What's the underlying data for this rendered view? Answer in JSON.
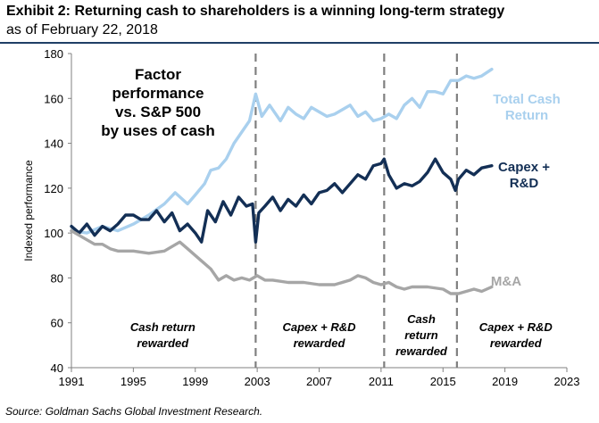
{
  "header": {
    "title": "Exhibit 2: Returning cash to shareholders is a winning long-term strategy",
    "subtitle": "as of February 22, 2018"
  },
  "footer": {
    "source": "Source: Goldman Sachs Global Investment Research."
  },
  "chart_data": {
    "type": "line",
    "ylabel": "Indexed performance",
    "xlabel": "",
    "xlim": [
      1991,
      2023
    ],
    "ylim": [
      40,
      180
    ],
    "xticks": [
      "1991",
      "1995",
      "1999",
      "2003",
      "2007",
      "2011",
      "2015",
      "2019",
      "2023"
    ],
    "yticks": [
      "40",
      "60",
      "80",
      "100",
      "120",
      "140",
      "160",
      "180"
    ],
    "grid": false,
    "annotation_title": [
      "Factor",
      "performance",
      "vs. S&P 500",
      "by uses of cash"
    ],
    "dividers": [
      2002.9,
      2011.2,
      2015.9
    ],
    "regions": [
      {
        "x": 1996.9,
        "y": 68,
        "lines": [
          "Cash return",
          "rewarded"
        ]
      },
      {
        "x": 2007.0,
        "y": 68,
        "lines": [
          "Capex + R&D",
          "rewarded"
        ]
      },
      {
        "x": 2013.6,
        "y": 68,
        "lines": [
          "Cash",
          "return",
          "rewarded"
        ]
      },
      {
        "x": 2019.7,
        "y": 68,
        "lines": [
          "Capex + R&D",
          "rewarded"
        ]
      }
    ],
    "series": [
      {
        "name": "Total Cash Return",
        "label_lines": [
          "Total Cash",
          "Return"
        ],
        "color": "#a9d0ee",
        "x": [
          1991.0,
          1992.0,
          1993.0,
          1994.0,
          1995.0,
          1996.0,
          1997.0,
          1997.7,
          1998.5,
          1999.0,
          1999.6,
          2000.0,
          2000.5,
          2001.0,
          2001.5,
          2002.0,
          2002.5,
          2002.9,
          2003.3,
          2003.8,
          2004.5,
          2005.0,
          2005.5,
          2006.0,
          2006.5,
          2007.0,
          2007.5,
          2008.0,
          2008.5,
          2009.0,
          2009.5,
          2010.0,
          2010.5,
          2011.0,
          2011.5,
          2012.0,
          2012.5,
          2013.0,
          2013.5,
          2014.0,
          2014.5,
          2015.0,
          2015.5,
          2016.0,
          2016.5,
          2017.0,
          2017.5,
          2018.15
        ],
        "values": [
          101,
          100,
          103,
          101,
          104,
          108,
          113,
          118,
          113,
          117,
          122,
          128,
          129,
          133,
          140,
          145,
          150,
          162,
          152,
          157,
          150,
          156,
          153,
          151,
          156,
          154,
          152,
          153,
          155,
          157,
          152,
          154,
          150,
          151,
          153,
          151,
          157,
          160,
          156,
          163,
          163,
          162,
          168,
          168,
          170,
          169,
          170,
          173
        ]
      },
      {
        "name": "Capex + R&D",
        "label_lines": [
          "Capex +",
          "R&D"
        ],
        "color": "#132f55",
        "x": [
          1991.0,
          1991.5,
          1992.0,
          1992.5,
          1993.0,
          1993.5,
          1994.0,
          1994.5,
          1995.0,
          1995.5,
          1996.0,
          1996.5,
          1997.0,
          1997.5,
          1998.0,
          1998.5,
          1999.0,
          1999.4,
          1999.8,
          2000.3,
          2000.8,
          2001.3,
          2001.8,
          2002.3,
          2002.7,
          2002.9,
          2003.1,
          2003.5,
          2004.0,
          2004.5,
          2005.0,
          2005.5,
          2006.0,
          2006.5,
          2007.0,
          2007.5,
          2008.0,
          2008.5,
          2009.0,
          2009.5,
          2010.0,
          2010.5,
          2011.0,
          2011.2,
          2011.5,
          2012.0,
          2012.5,
          2013.0,
          2013.5,
          2014.0,
          2014.5,
          2015.0,
          2015.5,
          2015.8,
          2016.0,
          2016.5,
          2017.0,
          2017.5,
          2018.15
        ],
        "values": [
          103,
          100,
          104,
          99,
          103,
          101,
          104,
          108,
          108,
          106,
          106,
          110,
          105,
          109,
          101,
          104,
          100,
          96,
          110,
          105,
          114,
          108,
          116,
          112,
          113,
          96,
          109,
          112,
          116,
          110,
          115,
          112,
          117,
          113,
          118,
          119,
          122,
          118,
          122,
          126,
          124,
          130,
          131,
          133,
          126,
          120,
          122,
          121,
          123,
          127,
          133,
          127,
          124,
          119,
          124,
          128,
          126,
          129,
          130
        ]
      },
      {
        "name": "M&A",
        "label_lines": [
          "M&A"
        ],
        "color": "#a6a6a6",
        "x": [
          1991.0,
          1991.5,
          1992.0,
          1992.5,
          1993.0,
          1993.5,
          1994.0,
          1995.0,
          1996.0,
          1997.0,
          1998.0,
          1998.5,
          1999.0,
          1999.5,
          2000.0,
          2000.5,
          2001.0,
          2001.5,
          2002.0,
          2002.5,
          2003.0,
          2003.5,
          2004.0,
          2005.0,
          2006.0,
          2007.0,
          2008.0,
          2009.0,
          2009.5,
          2010.0,
          2010.5,
          2011.0,
          2011.5,
          2012.0,
          2012.5,
          2013.0,
          2014.0,
          2015.0,
          2015.5,
          2016.0,
          2016.5,
          2017.0,
          2017.5,
          2018.15
        ],
        "values": [
          101,
          99,
          97,
          95,
          95,
          93,
          92,
          92,
          91,
          92,
          96,
          93,
          90,
          87,
          84,
          79,
          81,
          79,
          80,
          79,
          81,
          79,
          79,
          78,
          78,
          77,
          77,
          79,
          81,
          80,
          78,
          77,
          78,
          76,
          75,
          76,
          76,
          75,
          73,
          73,
          74,
          75,
          74,
          76
        ]
      }
    ]
  }
}
